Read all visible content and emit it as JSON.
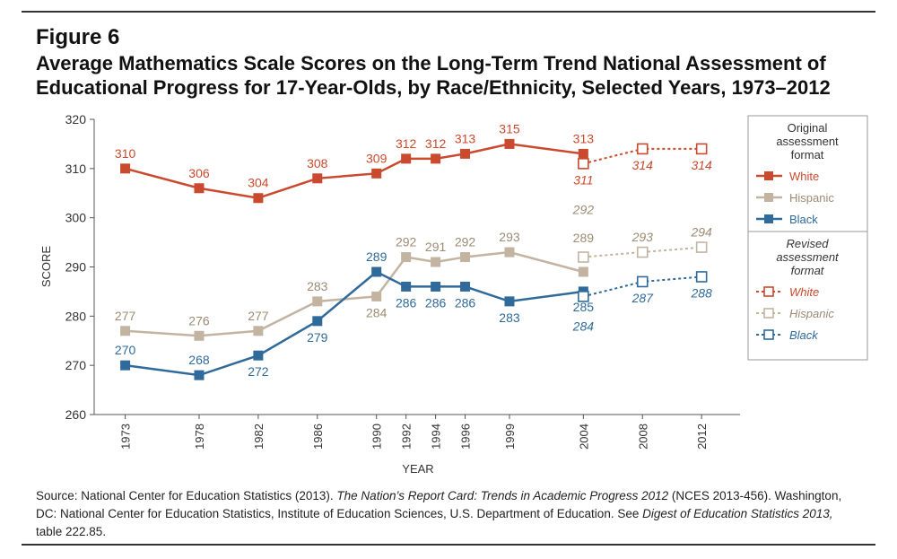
{
  "figure": {
    "label": "Figure 6",
    "title": "Average Mathematics Scale Scores on the Long-Term Trend National Assessment of Educational Progress for 17-Year-Olds, by Race/Ethnicity, Selected Years, 1973–2012"
  },
  "source": {
    "p1": "Source: National Center for Education Statistics (2013). ",
    "i1": "The Nation’s Report Card: Trends in Academic Progress 2012",
    "p2": " (NCES 2013-456). Washington, DC: National Center for Education Statistics, Institute of Education Sciences, U.S. Department of Education. See ",
    "i2": "Digest of Education Statistics 2013,",
    "p3": " table 222.85."
  },
  "colors": {
    "white": "#c94a2e",
    "hispanic": "#c3b4a1",
    "black": "#2f6a9a",
    "white_label": "#c94a2e",
    "hispanic_label": "#9c8b73",
    "black_label": "#2f6a9a"
  },
  "chart_data": {
    "type": "line",
    "xlabel": "YEAR",
    "ylabel": "SCORE",
    "ylim": [
      260,
      320
    ],
    "yticks": [
      260,
      270,
      280,
      290,
      300,
      310,
      320
    ],
    "x": [
      "1973",
      "1978",
      "1982",
      "1986",
      "1990",
      "1992",
      "1994",
      "1996",
      "1999",
      "2004",
      "2008",
      "2012"
    ],
    "grid": false,
    "series": [
      {
        "name": "White",
        "format": "original",
        "color": "#c94a2e",
        "x": [
          "1973",
          "1978",
          "1982",
          "1986",
          "1990",
          "1992",
          "1994",
          "1996",
          "1999",
          "2004"
        ],
        "values": [
          310,
          306,
          304,
          308,
          309,
          312,
          312,
          313,
          315,
          313
        ]
      },
      {
        "name": "Hispanic",
        "format": "original",
        "color": "#c3b4a1",
        "x": [
          "1973",
          "1978",
          "1982",
          "1986",
          "1990",
          "1992",
          "1994",
          "1996",
          "1999",
          "2004"
        ],
        "values": [
          277,
          276,
          277,
          283,
          284,
          292,
          291,
          292,
          293,
          289
        ]
      },
      {
        "name": "Black",
        "format": "original",
        "color": "#2f6a9a",
        "x": [
          "1973",
          "1978",
          "1982",
          "1986",
          "1990",
          "1992",
          "1994",
          "1996",
          "1999",
          "2004"
        ],
        "values": [
          270,
          268,
          272,
          279,
          289,
          286,
          286,
          286,
          283,
          285
        ]
      },
      {
        "name": "White",
        "format": "revised",
        "color": "#c94a2e",
        "x": [
          "2004",
          "2008",
          "2012"
        ],
        "values": [
          311,
          314,
          314
        ]
      },
      {
        "name": "Hispanic",
        "format": "revised",
        "color": "#c3b4a1",
        "x": [
          "2004",
          "2008",
          "2012"
        ],
        "values": [
          292,
          293,
          294
        ]
      },
      {
        "name": "Black",
        "format": "revised",
        "color": "#2f6a9a",
        "x": [
          "2004",
          "2008",
          "2012"
        ],
        "values": [
          284,
          287,
          288
        ]
      }
    ],
    "legend": {
      "placement": "right",
      "original_heading": "Original assessment format",
      "revised_heading": "Revised assessment format",
      "original_items": [
        "White",
        "Hispanic",
        "Black"
      ],
      "revised_items": [
        "White",
        "Hispanic",
        "Black"
      ]
    }
  }
}
